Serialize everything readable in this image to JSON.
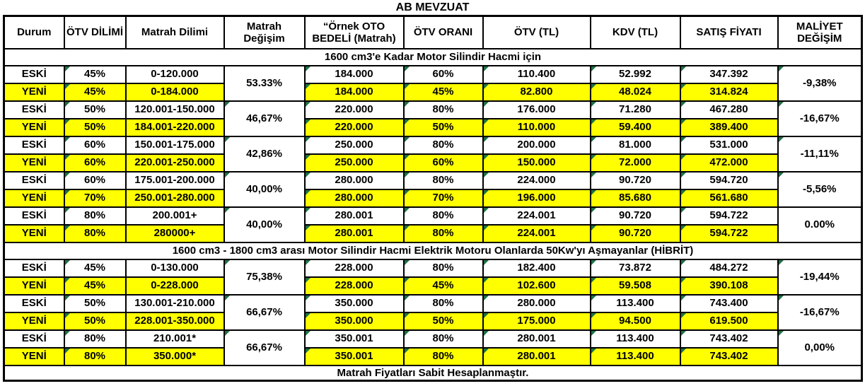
{
  "title": "AB MEVZUAT",
  "columns": [
    "Durum",
    "ÖTV DİLİMİ",
    "Matrah Dilimi",
    "Matrah Değişim",
    "“Örnek OTO BEDELİ (Matrah)",
    "ÖTV ORANI",
    "ÖTV (TL)",
    "KDV (TL)",
    "SATIŞ FİYATI",
    "MALİYET DEĞİŞİM"
  ],
  "row_labels": {
    "old": "ESKİ",
    "new": "YENİ"
  },
  "colors": {
    "highlight": "#FFFF00",
    "flag_green": "#1E7145",
    "border": "#000000",
    "text": "#000000"
  },
  "flag_columns": [
    "otv_dilimi",
    "ornek_oto",
    "otv_orani",
    "otv_tl",
    "kdv_tl",
    "satis_fiyati"
  ],
  "sections": [
    {
      "header": "1600 cm3'e Kadar Motor Silindir Hacmi için",
      "pairs": [
        {
          "matrah_degisim": "53.33%",
          "degisim_flag": false,
          "maliyet_degisim": "-9,38%",
          "maliyet_flag": true,
          "old": {
            "otv_dilimi": "45%",
            "matrah_dilimi": "0-120.000",
            "ornek_oto": "184.000",
            "otv_orani": "60%",
            "otv_tl": "110.400",
            "kdv_tl": "52.992",
            "satis_fiyati": "347.392"
          },
          "new": {
            "otv_dilimi": "45%",
            "matrah_dilimi": "0-184.000",
            "ornek_oto": "184.000",
            "otv_orani": "45%",
            "otv_tl": "82.800",
            "kdv_tl": "48.024",
            "satis_fiyati": "314.824"
          }
        },
        {
          "matrah_degisim": "46,67%",
          "degisim_flag": true,
          "maliyet_degisim": "-16,67%",
          "maliyet_flag": true,
          "old": {
            "otv_dilimi": "50%",
            "matrah_dilimi": "120.001-150.000",
            "ornek_oto": "220.000",
            "otv_orani": "80%",
            "otv_tl": "176.000",
            "kdv_tl": "71.280",
            "satis_fiyati": "467.280"
          },
          "new": {
            "otv_dilimi": "50%",
            "matrah_dilimi": "184.001-220.000",
            "ornek_oto": "220.000",
            "otv_orani": "50%",
            "otv_tl": "110.000",
            "kdv_tl": "59.400",
            "satis_fiyati": "389.400"
          }
        },
        {
          "matrah_degisim": "42,86%",
          "degisim_flag": true,
          "maliyet_degisim": "-11,11%",
          "maliyet_flag": true,
          "old": {
            "otv_dilimi": "60%",
            "matrah_dilimi": "150.001-175.000",
            "ornek_oto": "250.000",
            "otv_orani": "80%",
            "otv_tl": "200.000",
            "kdv_tl": "81.000",
            "satis_fiyati": "531.000"
          },
          "new": {
            "otv_dilimi": "60%",
            "matrah_dilimi": "220.001-250.000",
            "ornek_oto": "250.000",
            "otv_orani": "60%",
            "otv_tl": "150.000",
            "kdv_tl": "72.000",
            "satis_fiyati": "472.000"
          }
        },
        {
          "matrah_degisim": "40,00%",
          "degisim_flag": true,
          "maliyet_degisim": "-5,56%",
          "maliyet_flag": true,
          "old": {
            "otv_dilimi": "60%",
            "matrah_dilimi": "175.001-200.000",
            "ornek_oto": "280.000",
            "otv_orani": "80%",
            "otv_tl": "224.000",
            "kdv_tl": "90.720",
            "satis_fiyati": "594.720"
          },
          "new": {
            "otv_dilimi": "70%",
            "matrah_dilimi": "250.001-280.000",
            "ornek_oto": "280.000",
            "otv_orani": "70%",
            "otv_tl": "196.000",
            "kdv_tl": "85.680",
            "satis_fiyati": "561.680"
          }
        },
        {
          "matrah_degisim": "40,00%",
          "degisim_flag": true,
          "maliyet_degisim": "0.00%",
          "maliyet_flag": false,
          "old": {
            "otv_dilimi": "80%",
            "matrah_dilimi": "200.001+",
            "ornek_oto": "280.001",
            "otv_orani": "80%",
            "otv_tl": "224.001",
            "kdv_tl": "90.720",
            "satis_fiyati": "594.722"
          },
          "new": {
            "otv_dilimi": "80%",
            "matrah_dilimi": "280000+",
            "ornek_oto": "280.001",
            "otv_orani": "80%",
            "otv_tl": "224.001",
            "kdv_tl": "90.720",
            "satis_fiyati": "594.722"
          }
        }
      ]
    },
    {
      "header": "1600 cm3 - 1800 cm3 arası Motor Silindir Hacmi Elektrik Motoru Olanlarda 50Kw'yı Aşmayanlar (HİBRİT)",
      "pairs": [
        {
          "matrah_degisim": "75,38%",
          "degisim_flag": true,
          "maliyet_degisim": "-19,44%",
          "maliyet_flag": true,
          "old": {
            "otv_dilimi": "45%",
            "matrah_dilimi": "0-130.000",
            "ornek_oto": "228.000",
            "otv_orani": "80%",
            "otv_tl": "182.400",
            "kdv_tl": "73.872",
            "satis_fiyati": "484.272"
          },
          "new": {
            "otv_dilimi": "45%",
            "matrah_dilimi": "0-228.000",
            "ornek_oto": "228.000",
            "otv_orani": "45%",
            "otv_tl": "102.600",
            "kdv_tl": "59.508",
            "satis_fiyati": "390.108"
          }
        },
        {
          "matrah_degisim": "66,67%",
          "degisim_flag": true,
          "maliyet_degisim": "-16,67%",
          "maliyet_flag": true,
          "old": {
            "otv_dilimi": "50%",
            "matrah_dilimi": "130.001-210.000",
            "ornek_oto": "350.000",
            "otv_orani": "80%",
            "otv_tl": "280.000",
            "kdv_tl": "113.400",
            "satis_fiyati": "743.400"
          },
          "new": {
            "otv_dilimi": "50%",
            "matrah_dilimi": "228.001-350.000",
            "ornek_oto": "350.000",
            "otv_orani": "50%",
            "otv_tl": "175.000",
            "kdv_tl": "94.500",
            "satis_fiyati": "619.500"
          }
        },
        {
          "matrah_degisim": "66,67%",
          "degisim_flag": true,
          "maliyet_degisim": "0,00%",
          "maliyet_flag": true,
          "old": {
            "otv_dilimi": "80%",
            "matrah_dilimi": "210.001*",
            "ornek_oto": "350.001",
            "otv_orani": "80%",
            "otv_tl": "280.001",
            "kdv_tl": "113.400",
            "satis_fiyati": "743.402"
          },
          "new": {
            "otv_dilimi": "80%",
            "matrah_dilimi": "350.000*",
            "ornek_oto": "350.001",
            "otv_orani": "80%",
            "otv_tl": "280.001",
            "kdv_tl": "113.400",
            "satis_fiyati": "743.402"
          }
        }
      ]
    }
  ],
  "footer": "Matrah Fiyatları Sabit Hesaplanmaştır."
}
